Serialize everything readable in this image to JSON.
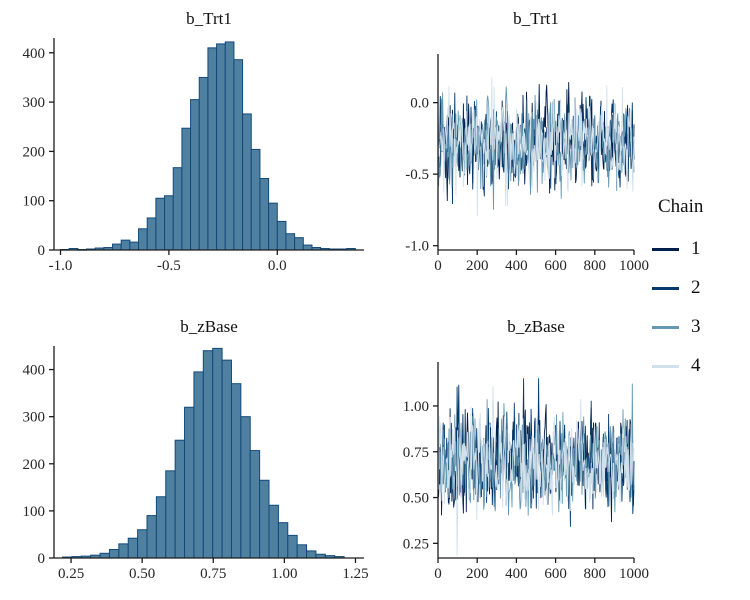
{
  "figure": {
    "background": "#ffffff",
    "description": "MCMC posterior diagnostics: histograms and trace plots"
  },
  "style": {
    "hist_fill": "#50809f",
    "hist_stroke": "#114a7b",
    "axis_color": "#1c1c1c",
    "text_color": "#262626"
  },
  "legend": {
    "title": "Chain",
    "items": [
      {
        "label": "1",
        "color": "#011f4b"
      },
      {
        "label": "2",
        "color": "#03396c"
      },
      {
        "label": "3",
        "color": "#6497b1"
      },
      {
        "label": "4",
        "color": "#d1e1ec"
      }
    ]
  },
  "chart_data": [
    {
      "type": "bar",
      "subtype": "histogram",
      "title": "b_Trt1",
      "position": "top-left",
      "bin_start": -1.0,
      "bin_width": 0.04,
      "counts": [
        1,
        3,
        1,
        2,
        4,
        5,
        12,
        20,
        16,
        43,
        65,
        105,
        110,
        167,
        247,
        305,
        350,
        410,
        418,
        422,
        386,
        276,
        204,
        145,
        95,
        58,
        33,
        25,
        10,
        5,
        3,
        2,
        2,
        3
      ],
      "xlim": [
        -1.03,
        0.4
      ],
      "ylim": [
        0,
        430
      ],
      "x_ticks": [
        -1.0,
        -0.5,
        0.0
      ],
      "x_tick_labels": [
        "-1.0",
        "-0.5",
        "0.0"
      ],
      "y_ticks": [
        0,
        100,
        200,
        300,
        400
      ],
      "y_tick_labels": [
        "0",
        "100",
        "200",
        "300",
        "400"
      ],
      "grid": false
    },
    {
      "type": "line",
      "subtype": "trace",
      "title": "b_Trt1",
      "position": "top-right",
      "n_iterations": 1000,
      "points_drawn": 340,
      "mean": -0.28,
      "sd": 0.155,
      "ar": 0.25,
      "seed": 11,
      "xlim": [
        0,
        1000
      ],
      "ylim": [
        -1.03,
        0.34
      ],
      "x_ticks": [
        0,
        200,
        400,
        600,
        800,
        1000
      ],
      "x_tick_labels": [
        "0",
        "200",
        "400",
        "600",
        "800",
        "1000"
      ],
      "y_ticks": [
        0.0,
        -0.5,
        -1.0
      ],
      "y_tick_labels": [
        "0.0",
        "-0.5",
        "-1.0"
      ],
      "chains": [
        "1",
        "2",
        "3",
        "4"
      ],
      "grid": false
    },
    {
      "type": "bar",
      "subtype": "histogram",
      "title": "b_zBase",
      "position": "bottom-left",
      "bin_start": 0.22,
      "bin_width": 0.033,
      "counts": [
        2,
        3,
        4,
        6,
        10,
        18,
        30,
        42,
        60,
        90,
        130,
        185,
        250,
        320,
        395,
        440,
        445,
        420,
        370,
        300,
        228,
        165,
        112,
        75,
        48,
        28,
        15,
        8,
        5,
        3
      ],
      "xlim": [
        0.19,
        1.28
      ],
      "ylim": [
        0,
        450
      ],
      "x_ticks": [
        0.25,
        0.5,
        0.75,
        1.0,
        1.25
      ],
      "x_tick_labels": [
        "0.25",
        "0.50",
        "0.75",
        "1.00",
        "1.25"
      ],
      "y_ticks": [
        0,
        100,
        200,
        300,
        400
      ],
      "y_tick_labels": [
        "0",
        "100",
        "200",
        "300",
        "400"
      ],
      "grid": false
    },
    {
      "type": "line",
      "subtype": "trace",
      "title": "b_zBase",
      "position": "bottom-right",
      "n_iterations": 1000,
      "points_drawn": 340,
      "mean": 0.7,
      "sd": 0.13,
      "ar": 0.25,
      "seed": 23,
      "xlim": [
        0,
        1000
      ],
      "ylim": [
        0.17,
        1.24
      ],
      "x_ticks": [
        0,
        200,
        400,
        600,
        800,
        1000
      ],
      "x_tick_labels": [
        "0",
        "200",
        "400",
        "600",
        "800",
        "1000"
      ],
      "y_ticks": [
        0.25,
        0.5,
        0.75,
        1.0
      ],
      "y_tick_labels": [
        "0.25",
        "0.50",
        "0.75",
        "1.00"
      ],
      "chains": [
        "1",
        "2",
        "3",
        "4"
      ],
      "grid": false
    }
  ]
}
